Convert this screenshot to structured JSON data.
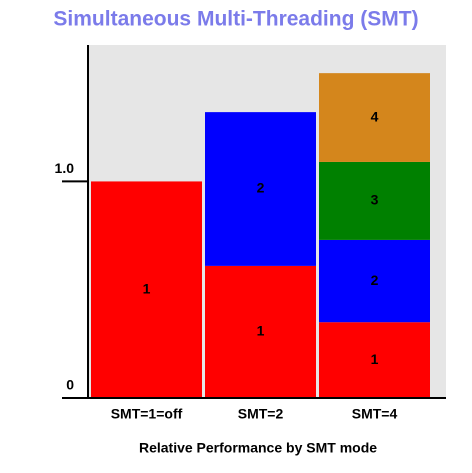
{
  "chart_data": {
    "type": "stacked_bar",
    "title": "Simultaneous Multi-Threading (SMT)",
    "x_label": "Relative Performance by SMT mode",
    "categories": [
      "SMT=1=off",
      "SMT=2",
      "SMT=4"
    ],
    "series": [
      {
        "name": "1",
        "color": "#ff0000",
        "values": [
          1.0,
          0.61,
          0.35
        ]
      },
      {
        "name": "2",
        "color": "#0000ff",
        "values": [
          null,
          0.71,
          0.38
        ]
      },
      {
        "name": "3",
        "color": "#008000",
        "values": [
          null,
          null,
          0.36
        ]
      },
      {
        "name": "4",
        "color": "#d4861c",
        "values": [
          null,
          null,
          0.41
        ]
      }
    ],
    "ylim": [
      0,
      1.63
    ],
    "yticks": [
      0,
      {
        "value": 1,
        "label": "1.0"
      }
    ]
  }
}
